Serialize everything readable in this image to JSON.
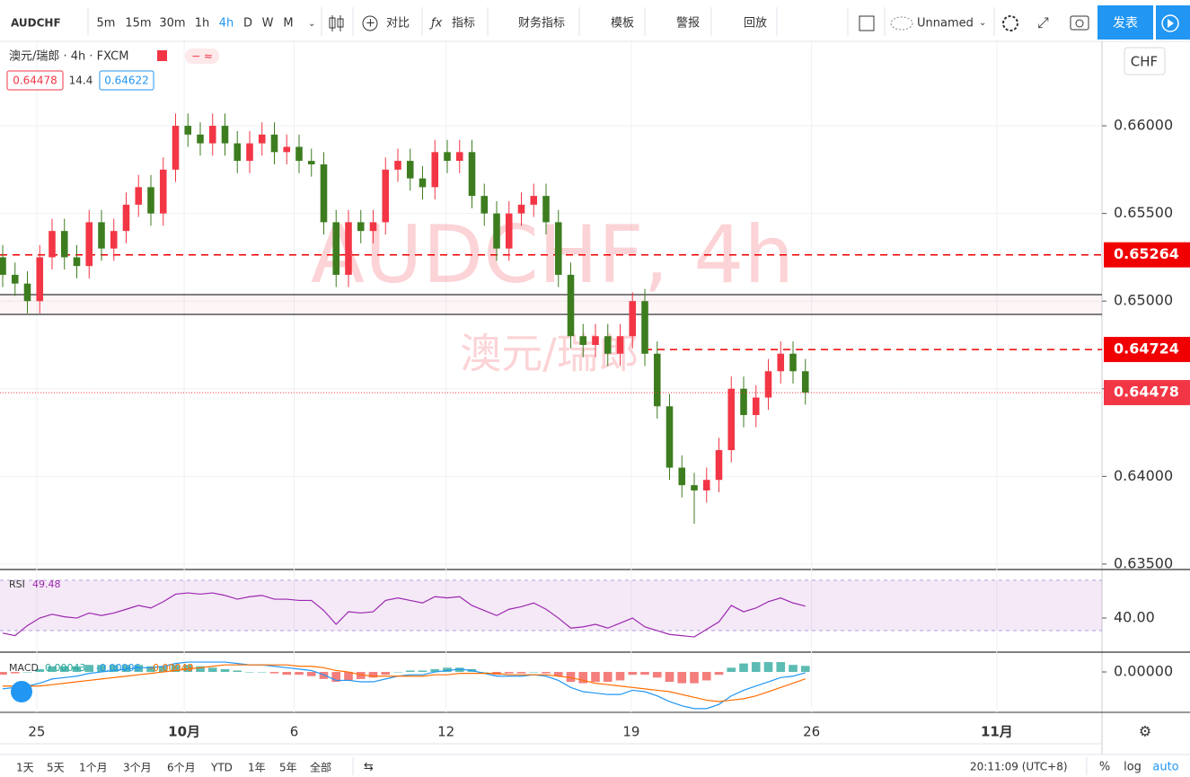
{
  "ui": {
    "symbol": "AUDCHF",
    "intervals": [
      "5m",
      "15m",
      "30m",
      "1h",
      "4h",
      "D",
      "W",
      "M"
    ],
    "tools": [
      "对比",
      "指标",
      "财务指标",
      "模板",
      "警报",
      "回放"
    ],
    "layout_name": "Unnamed",
    "publish": "发表",
    "legend": "澳元/瑞郎 · 4h · FXCM",
    "quote": {
      "bid": 0.64478,
      "spread": 14.4,
      "ask": 0.64622
    },
    "currency": "CHF",
    "watermark": [
      "AUDCHF, 4h",
      "澳元/瑞郎"
    ],
    "ranges": [
      "1天",
      "5天",
      "1个月",
      "3个月",
      "6个月",
      "YTD",
      "1年",
      "5年",
      "全部"
    ],
    "clock": "20:11:09 (UTC+8)",
    "scale_modes": [
      "%",
      "log",
      "auto"
    ]
  },
  "chart_data": {
    "type": "candlestick",
    "title": "AUDCHF",
    "up_color": "#f23645",
    "down_color": "#3d7d1f",
    "open": [
      0.6525,
      0.6515,
      0.651,
      0.65,
      0.6525,
      0.654,
      0.6525,
      0.652,
      0.6545,
      0.653,
      0.654,
      0.6555,
      0.6565,
      0.655,
      0.6575,
      0.66,
      0.6595,
      0.659,
      0.66,
      0.659,
      0.658,
      0.659,
      0.6595,
      0.6585,
      0.6588,
      0.658,
      0.6578,
      0.6545,
      0.6515,
      0.6545,
      0.654,
      0.6545,
      0.6575,
      0.658,
      0.657,
      0.6565,
      0.6585,
      0.658,
      0.6585,
      0.656,
      0.655,
      0.653,
      0.655,
      0.6555,
      0.656,
      0.6545,
      0.6515,
      0.648,
      0.6475,
      0.648,
      0.647,
      0.648,
      0.65,
      0.647,
      0.644,
      0.6405,
      0.6395,
      0.6392,
      0.6398,
      0.6415,
      0.645,
      0.6435,
      0.6445,
      0.646,
      0.647,
      0.646
    ],
    "high": [
      0.6532,
      0.6522,
      0.6517,
      0.6532,
      0.6547,
      0.6547,
      0.6532,
      0.6552,
      0.6552,
      0.6547,
      0.6562,
      0.6572,
      0.6572,
      0.6582,
      0.6607,
      0.6607,
      0.6602,
      0.6607,
      0.6607,
      0.6597,
      0.6597,
      0.6602,
      0.6602,
      0.6595,
      0.6595,
      0.6587,
      0.6585,
      0.6552,
      0.6552,
      0.6552,
      0.6552,
      0.6582,
      0.6587,
      0.6587,
      0.6577,
      0.6592,
      0.6592,
      0.6592,
      0.6592,
      0.6567,
      0.6557,
      0.6557,
      0.6562,
      0.6567,
      0.6567,
      0.6552,
      0.6522,
      0.6487,
      0.6487,
      0.6487,
      0.6487,
      0.6505,
      0.6507,
      0.6477,
      0.6447,
      0.6412,
      0.6402,
      0.6405,
      0.6422,
      0.6457,
      0.6457,
      0.6452,
      0.6467,
      0.6477,
      0.6477,
      0.6467
    ],
    "low": [
      0.6508,
      0.6503,
      0.6493,
      0.6493,
      0.6518,
      0.6518,
      0.6513,
      0.6513,
      0.6523,
      0.6523,
      0.6533,
      0.6548,
      0.6543,
      0.6543,
      0.6568,
      0.6588,
      0.6583,
      0.6583,
      0.6583,
      0.6573,
      0.6573,
      0.6583,
      0.6578,
      0.6578,
      0.6573,
      0.6571,
      0.6538,
      0.6508,
      0.6508,
      0.6533,
      0.6533,
      0.6538,
      0.6568,
      0.6563,
      0.6558,
      0.6558,
      0.6573,
      0.6573,
      0.6553,
      0.6543,
      0.6523,
      0.6523,
      0.6543,
      0.6548,
      0.6538,
      0.6508,
      0.6473,
      0.6468,
      0.6468,
      0.6463,
      0.6463,
      0.6473,
      0.6463,
      0.6433,
      0.6398,
      0.6388,
      0.6373,
      0.6385,
      0.6391,
      0.6408,
      0.6428,
      0.6428,
      0.6438,
      0.6453,
      0.6453,
      0.6441
    ],
    "close": [
      0.6515,
      0.651,
      0.65,
      0.6525,
      0.654,
      0.6525,
      0.652,
      0.6545,
      0.653,
      0.654,
      0.6555,
      0.6565,
      0.655,
      0.6575,
      0.66,
      0.6595,
      0.659,
      0.66,
      0.659,
      0.658,
      0.659,
      0.6595,
      0.6585,
      0.6588,
      0.658,
      0.6578,
      0.6545,
      0.6515,
      0.6545,
      0.654,
      0.6545,
      0.6575,
      0.658,
      0.657,
      0.6565,
      0.6585,
      0.658,
      0.6585,
      0.656,
      0.655,
      0.653,
      0.655,
      0.6555,
      0.656,
      0.6545,
      0.6515,
      0.648,
      0.6475,
      0.648,
      0.647,
      0.648,
      0.65,
      0.647,
      0.644,
      0.6405,
      0.6395,
      0.6392,
      0.6398,
      0.6415,
      0.645,
      0.6435,
      0.6445,
      0.646,
      0.647,
      0.646,
      0.64478
    ],
    "xlim": [
      -0.218,
      89.018
    ],
    "xticks": [
      {
        "value": 2.76,
        "label": "25"
      },
      {
        "value": 14.7,
        "label": "10月"
      },
      {
        "value": 23.6,
        "label": "6"
      },
      {
        "value": 35.9,
        "label": "12"
      },
      {
        "value": 50.9,
        "label": "19"
      },
      {
        "value": 65.5,
        "label": "26"
      },
      {
        "value": 80.5,
        "label": "11月"
      }
    ],
    "ylim": [
      0.63474,
      0.66482
    ],
    "yticks": [
      {
        "value": 0.66,
        "label": "0.66000"
      },
      {
        "value": 0.655,
        "label": "0.65500"
      },
      {
        "value": 0.65,
        "label": "0.65000"
      },
      {
        "value": 0.645,
        "label": "0.64500"
      },
      {
        "value": 0.64,
        "label": "0.64000"
      },
      {
        "value": 0.635,
        "label": "0.63500"
      }
    ],
    "levels": [
      {
        "value": 0.65264,
        "from": -0.218,
        "color": "#f00000"
      },
      {
        "value": 0.64724,
        "from": 52,
        "color": "#f00000"
      }
    ],
    "zone": [
      0.64924,
      0.65037
    ],
    "grid": true,
    "rsi": {
      "name": "RSI",
      "color": "#9c27b0",
      "ylim": [
        13.6,
        77.9
      ],
      "yticks": [
        {
          "value": 40,
          "label": "40.00"
        }
      ],
      "bands": [
        30,
        70
      ],
      "values": [
        28,
        26,
        34,
        40,
        43,
        41,
        40,
        44,
        42,
        44,
        47,
        50,
        48,
        53,
        59,
        60,
        59,
        60,
        58,
        55,
        57,
        58,
        55,
        55,
        54,
        54,
        46,
        35,
        45,
        44,
        45,
        54,
        56,
        54,
        52,
        57,
        56,
        57,
        50,
        46,
        42,
        47,
        49,
        52,
        47,
        40,
        32,
        33,
        35,
        32,
        36,
        40,
        33,
        30,
        27,
        26,
        25,
        31,
        37,
        50,
        45,
        48,
        53,
        56,
        52,
        49.48
      ]
    },
    "macd": {
      "name": "MACD",
      "ylim": [
        -0.0028,
        0.00134
      ],
      "yticks": [
        {
          "value": 0,
          "label": "0.00000"
        }
      ],
      "series": [
        {
          "name": "histogram",
          "color": "#26a69a",
          "negative_color": "#ef5350",
          "values": [
            -0.0002,
            -0.0001,
            0,
            0.0002,
            0.0004,
            0.0004,
            0.0004,
            0.0005,
            0.0005,
            0.0005,
            0.0005,
            0.0005,
            0.0004,
            0.0004,
            0.0005,
            0.0005,
            0.0004,
            0.0003,
            0.0002,
            0.0001,
            0,
            0,
            -0.0001,
            -0.0002,
            -0.0002,
            -0.0003,
            -0.0005,
            -0.0007,
            -0.0006,
            -0.0005,
            -0.0004,
            -0.0002,
            0,
            0.0001,
            0.0001,
            0.0002,
            0.0003,
            0.0003,
            0.0002,
            0,
            -0.0002,
            -0.0001,
            -0.0001,
            0,
            -0.0001,
            -0.0003,
            -0.0007,
            -0.0008,
            -0.0007,
            -0.0007,
            -0.0006,
            -0.0002,
            -0.0002,
            -0.0004,
            -0.0007,
            -0.0008,
            -0.0008,
            -0.0006,
            -0.0002,
            0.0003,
            0.0006,
            0.0007,
            0.0007,
            0.0007,
            0.0005,
            0.00043
          ]
        },
        {
          "name": "macd",
          "color": "#2196f3",
          "values": [
            -0.0012,
            -0.0011,
            -0.001,
            -0.0008,
            -0.0005,
            -0.0004,
            -0.0003,
            -0.0001,
            0,
            0.0001,
            0.0002,
            0.0003,
            0.0003,
            0.0004,
            0.0006,
            0.0007,
            0.0007,
            0.0007,
            0.0007,
            0.0006,
            0.0005,
            0.0005,
            0.0004,
            0.0003,
            0.0002,
            0.0001,
            -0.0002,
            -0.0006,
            -0.0006,
            -0.0007,
            -0.0007,
            -0.0005,
            -0.0003,
            -0.0002,
            -0.0002,
            0,
            0.0001,
            0.0002,
            0.0001,
            -0.0001,
            -0.0003,
            -0.0003,
            -0.0003,
            -0.0002,
            -0.0003,
            -0.0006,
            -0.0011,
            -0.0014,
            -0.0015,
            -0.0016,
            -0.0016,
            -0.0013,
            -0.0014,
            -0.0017,
            -0.0021,
            -0.0024,
            -0.0026,
            -0.0026,
            -0.0023,
            -0.0017,
            -0.0013,
            -0.001,
            -0.0007,
            -0.0004,
            -0.0003,
            -6e-05
          ]
        },
        {
          "name": "signal",
          "color": "#ff6d00",
          "values": [
            -0.001,
            -0.001,
            -0.001,
            -0.001,
            -0.0009,
            -0.0008,
            -0.0007,
            -0.0006,
            -0.0005,
            -0.0004,
            -0.0003,
            -0.0002,
            -0.0001,
            0,
            0.0001,
            0.0002,
            0.0003,
            0.0004,
            0.0005,
            0.0005,
            0.0005,
            0.0005,
            0.0005,
            0.0005,
            0.0004,
            0.0004,
            0.0003,
            0.0001,
            0,
            -0.0002,
            -0.0003,
            -0.0003,
            -0.0003,
            -0.0003,
            -0.0003,
            -0.0002,
            -0.0002,
            -0.0001,
            -0.0001,
            -0.0001,
            -0.0001,
            -0.0002,
            -0.0002,
            -0.0002,
            -0.0002,
            -0.0003,
            -0.0004,
            -0.0006,
            -0.0008,
            -0.0009,
            -0.001,
            -0.0011,
            -0.0012,
            -0.0013,
            -0.0014,
            -0.0016,
            -0.0018,
            -0.002,
            -0.0021,
            -0.002,
            -0.0019,
            -0.0017,
            -0.0014,
            -0.0011,
            -0.0008,
            -0.00049
          ]
        }
      ]
    }
  }
}
